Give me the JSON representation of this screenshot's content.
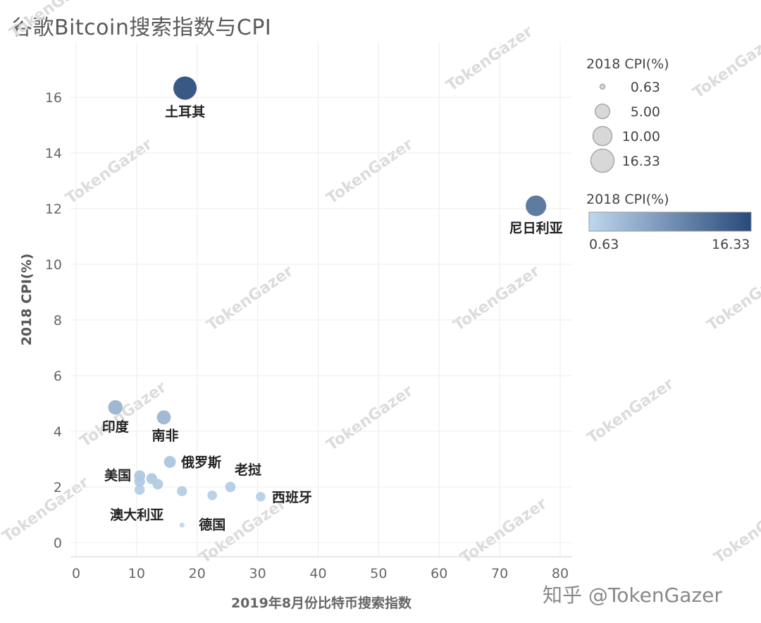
{
  "title": "谷歌Bitcoin搜索指数与CPI",
  "watermark_text": "TokenGazer",
  "site_mark": "知乎 @TokenGazer",
  "chart_data": {
    "type": "scatter",
    "xlabel": "2019年8月份比特币搜索指数",
    "ylabel": "2018 CPI(%)",
    "xlim": [
      0,
      80
    ],
    "ylim": [
      -0.4,
      17.2
    ],
    "xticks": [
      "0",
      "10",
      "20",
      "30",
      "40",
      "50",
      "60",
      "70",
      "80"
    ],
    "yticks": [
      "0",
      "2",
      "4",
      "6",
      "8",
      "10",
      "12",
      "14",
      "16"
    ],
    "grid": true,
    "size_legend": {
      "title": "2018 CPI(%)",
      "values": [
        "0.63",
        "5.00",
        "10.00",
        "16.33"
      ]
    },
    "color_legend": {
      "title": "2018 CPI(%)",
      "min": "0.63",
      "max": "16.33",
      "color_low": "#bfd7ee",
      "color_high": "#284a7a"
    },
    "points": [
      {
        "label": "土耳其",
        "x": 18,
        "y": 16.33
      },
      {
        "label": "尼日利亚",
        "x": 76,
        "y": 12.1
      },
      {
        "label": "印度",
        "x": 6.5,
        "y": 4.86
      },
      {
        "label": "南非",
        "x": 14.5,
        "y": 4.5
      },
      {
        "label": "俄罗斯",
        "x": 15.5,
        "y": 2.9
      },
      {
        "label": "",
        "x": 10.5,
        "y": 2.4
      },
      {
        "label": "美国",
        "x": 10.5,
        "y": 2.2
      },
      {
        "label": "",
        "x": 12.5,
        "y": 2.3
      },
      {
        "label": "",
        "x": 13.5,
        "y": 2.1
      },
      {
        "label": "老挝",
        "x": 25.5,
        "y": 2.0
      },
      {
        "label": "澳大利亚",
        "x": 10.5,
        "y": 1.9
      },
      {
        "label": "",
        "x": 17.5,
        "y": 1.85
      },
      {
        "label": "德国",
        "x": 22.5,
        "y": 1.7
      },
      {
        "label": "西班牙",
        "x": 30.5,
        "y": 1.65
      },
      {
        "label": "",
        "x": 17.5,
        "y": 0.63
      }
    ]
  }
}
